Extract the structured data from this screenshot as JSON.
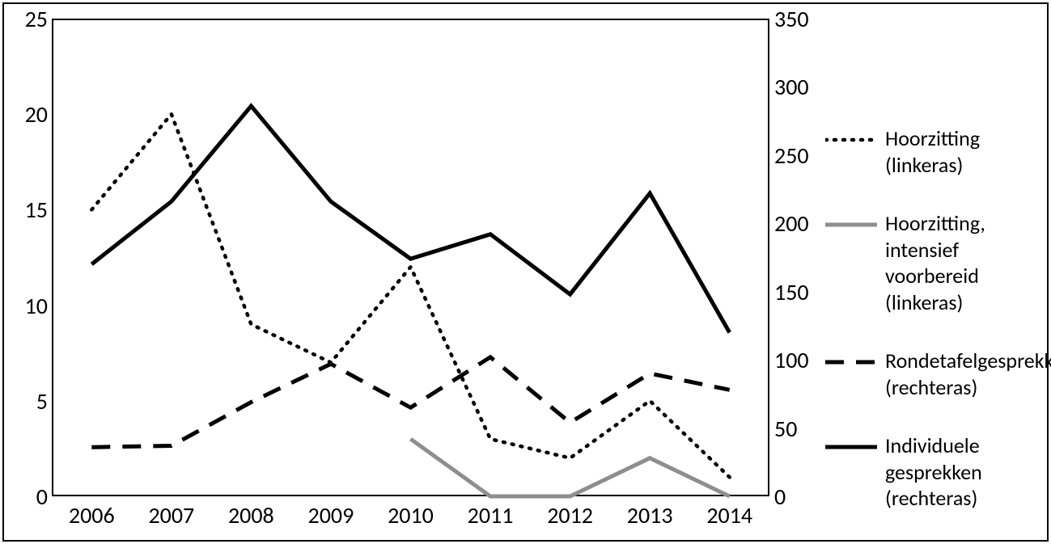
{
  "chart": {
    "type": "line-dual-axis",
    "background_color": "#ffffff",
    "border_color": "#000000",
    "plot_border_width": 2,
    "font_family": "Calibri, Arial, sans-serif",
    "axis_label_fontsize": 28,
    "axis_label_color": "#000000",
    "categories": [
      "2006",
      "2007",
      "2008",
      "2009",
      "2010",
      "2011",
      "2012",
      "2013",
      "2014"
    ],
    "left_axis": {
      "min": 0,
      "max": 25,
      "tick_step": 5,
      "ticks": [
        0,
        5,
        10,
        15,
        20,
        25
      ]
    },
    "right_axis": {
      "min": 0,
      "max": 350,
      "tick_step": 50,
      "ticks": [
        0,
        50,
        100,
        150,
        200,
        250,
        300,
        350
      ]
    },
    "series": [
      {
        "key": "hoorzitting",
        "label": "Hoorzitting (linkeras)",
        "axis": "left",
        "color": "#000000",
        "line_width": 4.5,
        "dash": "2 9",
        "linecap": "round",
        "values": [
          15,
          20,
          9,
          7,
          12,
          3,
          2,
          5,
          1
        ]
      },
      {
        "key": "hoorzitting_intensief",
        "label": "Hoorzitting, intensief voorbereid (linkeras)",
        "axis": "left",
        "color": "#8e8e8e",
        "line_width": 5,
        "dash": "",
        "linecap": "butt",
        "values": [
          null,
          null,
          null,
          null,
          3,
          0,
          0,
          2,
          0
        ]
      },
      {
        "key": "rondetafel",
        "label": "Rondetafelgesprekken (rechteras)",
        "axis": "right",
        "color": "#000000",
        "line_width": 5,
        "dash": "23 15",
        "linecap": "butt",
        "values": [
          36,
          37,
          69,
          97,
          65,
          102,
          54,
          90,
          78
        ]
      },
      {
        "key": "individuele",
        "label": "Individuele gesprekken (rechteras)",
        "axis": "right",
        "color": "#000000",
        "line_width": 5,
        "dash": "",
        "linecap": "butt",
        "values": [
          170,
          216,
          286,
          216,
          174,
          192,
          148,
          222,
          120
        ]
      }
    ],
    "legend": {
      "fontsize": 26,
      "color": "#000000",
      "swatch_width": 64
    }
  }
}
